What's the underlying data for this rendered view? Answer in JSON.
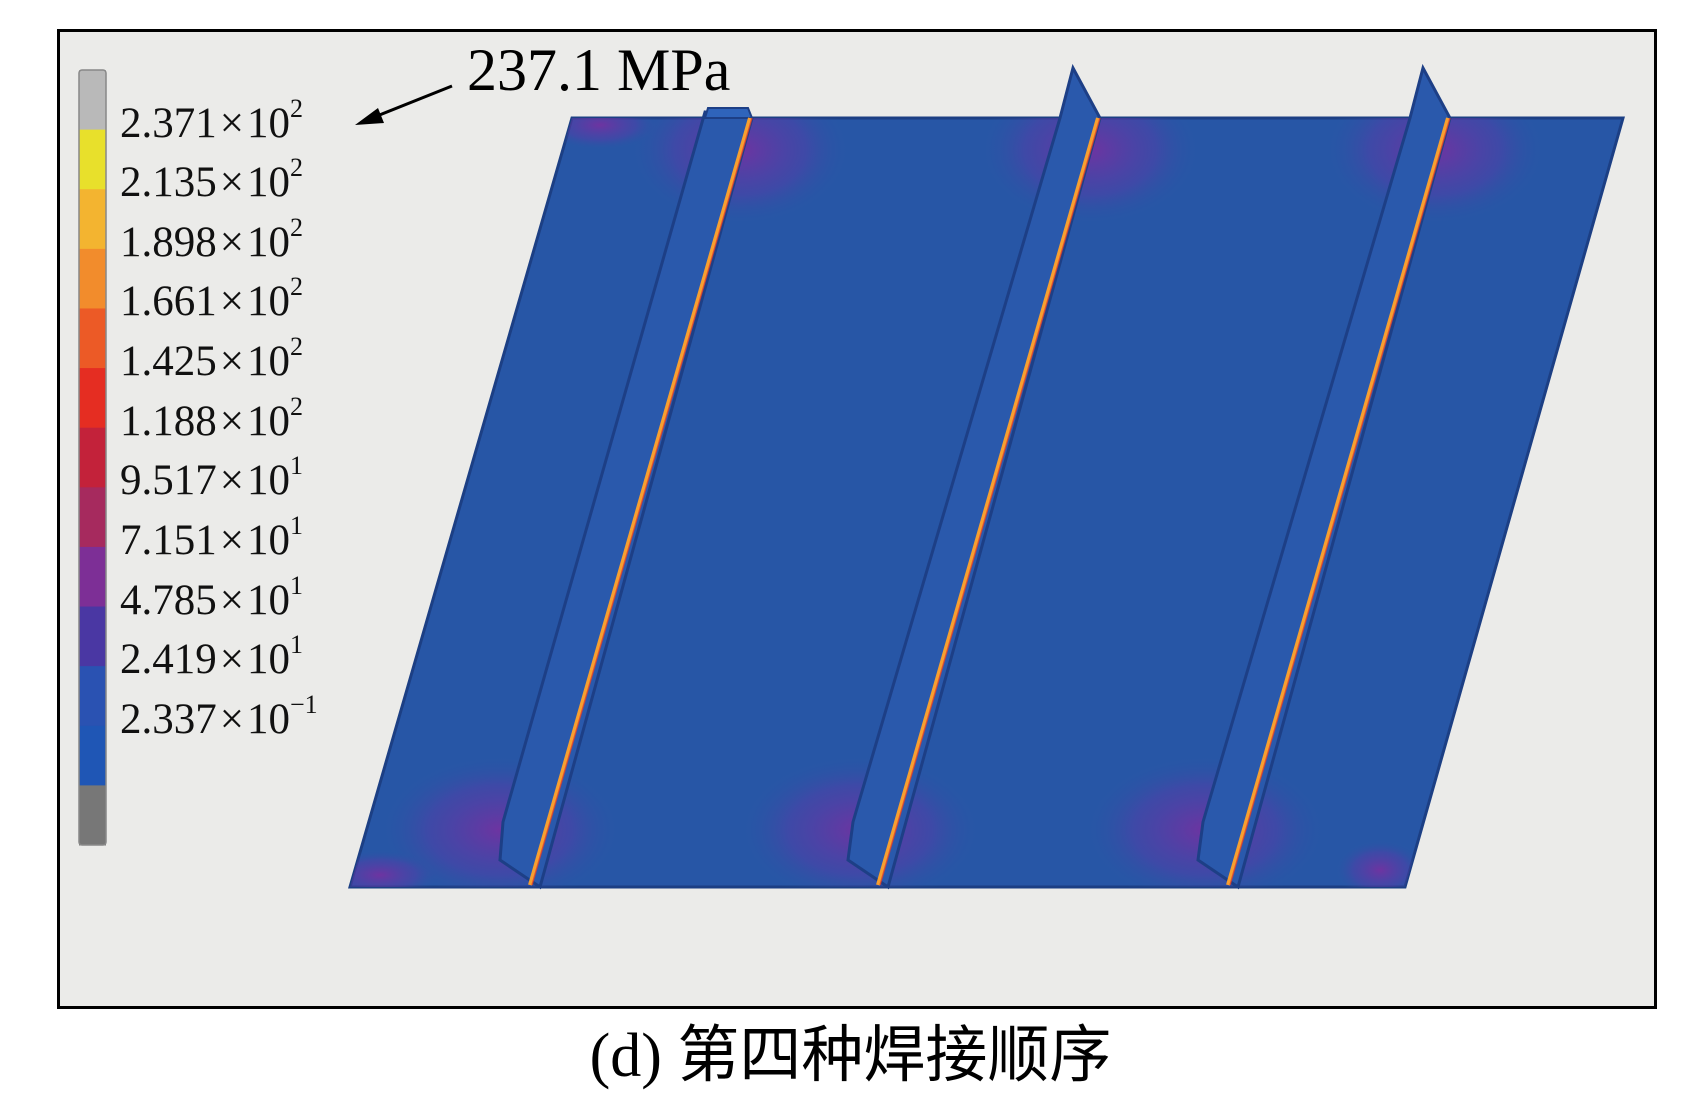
{
  "legend": {
    "colors": [
      "#b9b9b9",
      "#e8e02b",
      "#f3b430",
      "#f28c2c",
      "#ec5a26",
      "#e52d22",
      "#c3223a",
      "#a62a5e",
      "#7d2f96",
      "#4a37a3",
      "#2a52b2",
      "#1f56b5",
      "#777777"
    ],
    "labels": [
      {
        "mantissa": "2.371",
        "times": "×",
        "base": "10",
        "exp": "2"
      },
      {
        "mantissa": "2.135",
        "times": "×",
        "base": "10",
        "exp": "2"
      },
      {
        "mantissa": "1.898",
        "times": "×",
        "base": "10",
        "exp": "2"
      },
      {
        "mantissa": "1.661",
        "times": "×",
        "base": "10",
        "exp": "2"
      },
      {
        "mantissa": "1.425",
        "times": "×",
        "base": "10",
        "exp": "2"
      },
      {
        "mantissa": "1.188",
        "times": "×",
        "base": "10",
        "exp": "2"
      },
      {
        "mantissa": "9.517",
        "times": "×",
        "base": "10",
        "exp": "1"
      },
      {
        "mantissa": "7.151",
        "times": "×",
        "base": "10",
        "exp": "1"
      },
      {
        "mantissa": "4.785",
        "times": "×",
        "base": "10",
        "exp": "1"
      },
      {
        "mantissa": "2.419",
        "times": "×",
        "base": "10",
        "exp": "1"
      },
      {
        "mantissa": "2.337",
        "times": "×",
        "base": "10",
        "exp": "−1"
      }
    ]
  },
  "callout": {
    "text": "237.1 MPa"
  },
  "caption": "(d) 第四种焊接顺序",
  "colors": {
    "plate": "#2756a6",
    "stiffener": "#2858aa",
    "stiffener_edge": "#1d3f86",
    "weld_line": "#f7a030",
    "stress_halo": "#6a3aa0",
    "background": "#ebebe9"
  }
}
